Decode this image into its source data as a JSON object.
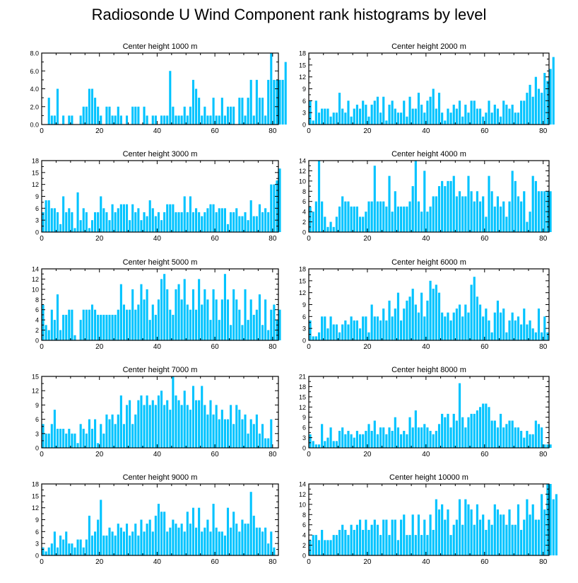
{
  "figure_title": "Radiosonde U Wind Component rank histograms by level",
  "colors": {
    "bar": "#00c3ff",
    "axis": "#000000"
  },
  "chart_data": [
    {
      "type": "bar",
      "title": "Center height 1000 m",
      "xlim": [
        0,
        82
      ],
      "ylim": [
        0,
        8
      ],
      "xticks": [
        0,
        20,
        40,
        60,
        80
      ],
      "yticks": [
        0,
        2,
        4,
        6,
        8
      ],
      "ytick_labels": [
        "0.0",
        "2.0",
        "4.0",
        "6.0",
        "8.0"
      ],
      "values": [
        0,
        0,
        3,
        1,
        1,
        4,
        0,
        1,
        0,
        1,
        1,
        0,
        0,
        1,
        2,
        2,
        4,
        4,
        3,
        2,
        1,
        0,
        2,
        2,
        1,
        1,
        2,
        1,
        0,
        1,
        0,
        2,
        2,
        2,
        0,
        2,
        1,
        0,
        1,
        1,
        0,
        1,
        1,
        1,
        6,
        2,
        1,
        1,
        1,
        2,
        1,
        2,
        5,
        4,
        3,
        1,
        2,
        1,
        1,
        3,
        1,
        1,
        3,
        1,
        2,
        2,
        2,
        0,
        3,
        3,
        1,
        3,
        5,
        1,
        5,
        3,
        3,
        1,
        5,
        8,
        5,
        5,
        5,
        5,
        7
      ]
    },
    {
      "type": "bar",
      "title": "Center height 2000 m",
      "xlim": [
        0,
        82
      ],
      "ylim": [
        0,
        18
      ],
      "xticks": [
        0,
        20,
        40,
        60,
        80
      ],
      "yticks": [
        0,
        3,
        6,
        9,
        12,
        15,
        18
      ],
      "ytick_labels": [
        "0",
        "3",
        "6",
        "9",
        "12",
        "15",
        "18"
      ],
      "values": [
        6,
        1,
        6,
        3,
        4,
        4,
        4,
        2,
        3,
        3,
        8,
        4,
        3,
        6,
        2,
        4,
        5,
        4,
        6,
        5,
        2,
        5,
        6,
        7,
        3,
        7,
        1,
        5,
        6,
        4,
        3,
        3,
        6,
        2,
        7,
        4,
        4,
        8,
        5,
        3,
        6,
        7,
        9,
        4,
        8,
        3,
        1,
        4,
        3,
        5,
        4,
        6,
        2,
        5,
        3,
        6,
        6,
        4,
        4,
        2,
        3,
        6,
        3,
        5,
        4,
        2,
        6,
        5,
        4,
        5,
        3,
        3,
        6,
        6,
        8,
        10,
        7,
        12,
        9,
        8,
        13,
        11,
        14,
        17
      ]
    },
    {
      "type": "bar",
      "title": "Center height 3000 m",
      "xlim": [
        0,
        82
      ],
      "ylim": [
        0,
        18
      ],
      "xticks": [
        0,
        20,
        40,
        60,
        80
      ],
      "yticks": [
        0,
        3,
        6,
        9,
        12,
        15,
        18
      ],
      "ytick_labels": [
        "0",
        "3",
        "6",
        "9",
        "12",
        "15",
        "18"
      ],
      "values": [
        5,
        8,
        8,
        6,
        6,
        5,
        2,
        9,
        5,
        6,
        5,
        1,
        10,
        3,
        6,
        5,
        1,
        3,
        5,
        5,
        9,
        6,
        5,
        3,
        7,
        5,
        6,
        7,
        7,
        7,
        3,
        7,
        5,
        6,
        3,
        5,
        4,
        8,
        6,
        4,
        5,
        3,
        5,
        7,
        7,
        7,
        5,
        5,
        5,
        9,
        5,
        9,
        5,
        6,
        5,
        4,
        5,
        6,
        7,
        7,
        5,
        6,
        6,
        6,
        2,
        5,
        5,
        6,
        4,
        4,
        5,
        3,
        8,
        4,
        4,
        7,
        5,
        6,
        5,
        12,
        12,
        13,
        16
      ]
    },
    {
      "type": "bar",
      "title": "Center height 4000 m",
      "xlim": [
        0,
        82
      ],
      "ylim": [
        0,
        14
      ],
      "xticks": [
        0,
        20,
        40,
        60,
        80
      ],
      "yticks": [
        0,
        2,
        4,
        6,
        8,
        10,
        12,
        14
      ],
      "ytick_labels": [
        "0",
        "2",
        "4",
        "6",
        "8",
        "10",
        "12",
        "14"
      ],
      "values": [
        5,
        4,
        6,
        14,
        6,
        3,
        1,
        2,
        1,
        3,
        5,
        7,
        6,
        6,
        5,
        5,
        5,
        3,
        3,
        4,
        6,
        6,
        13,
        6,
        6,
        6,
        5,
        11,
        4,
        8,
        5,
        5,
        5,
        5,
        6,
        9,
        14,
        6,
        4,
        12,
        4,
        5,
        7,
        7,
        9,
        10,
        9,
        10,
        10,
        11,
        7,
        8,
        7,
        7,
        11,
        8,
        6,
        8,
        6,
        7,
        3,
        11,
        8,
        5,
        7,
        5,
        6,
        3,
        6,
        12,
        10,
        7,
        6,
        8,
        2,
        4,
        11,
        10,
        8,
        8,
        8,
        8,
        8
      ]
    },
    {
      "type": "bar",
      "title": "Center height 5000 m",
      "xlim": [
        0,
        82
      ],
      "ylim": [
        0,
        14
      ],
      "xticks": [
        0,
        20,
        40,
        60,
        80
      ],
      "yticks": [
        0,
        2,
        4,
        6,
        8,
        10,
        12,
        14
      ],
      "ytick_labels": [
        "0",
        "2",
        "4",
        "6",
        "8",
        "10",
        "12",
        "14"
      ],
      "values": [
        7,
        3,
        2,
        6,
        4,
        9,
        2,
        5,
        5,
        6,
        6,
        1,
        0,
        4,
        6,
        6,
        6,
        7,
        6,
        5,
        5,
        5,
        5,
        5,
        5,
        5,
        6,
        11,
        7,
        6,
        6,
        10,
        6,
        7,
        11,
        8,
        10,
        4,
        7,
        5,
        8,
        12,
        13,
        10,
        6,
        5,
        10,
        11,
        8,
        12,
        7,
        6,
        10,
        6,
        12,
        7,
        10,
        8,
        4,
        10,
        8,
        4,
        8,
        13,
        8,
        3,
        10,
        8,
        6,
        3,
        10,
        4,
        8,
        5,
        6,
        9,
        3,
        8,
        2,
        6,
        7,
        4,
        6
      ]
    },
    {
      "type": "bar",
      "title": "Center height 6000 m",
      "xlim": [
        0,
        82
      ],
      "ylim": [
        0,
        18
      ],
      "xticks": [
        0,
        20,
        40,
        60,
        80
      ],
      "yticks": [
        0,
        3,
        6,
        9,
        12,
        15,
        18
      ],
      "ytick_labels": [
        "0",
        "3",
        "6",
        "9",
        "12",
        "15",
        "18"
      ],
      "values": [
        5,
        1,
        1,
        2,
        6,
        6,
        3,
        6,
        4,
        4,
        2,
        4,
        5,
        4,
        6,
        5,
        5,
        3,
        6,
        6,
        2,
        9,
        6,
        6,
        5,
        8,
        5,
        10,
        6,
        8,
        12,
        5,
        8,
        10,
        11,
        13,
        9,
        7,
        12,
        6,
        10,
        15,
        13,
        14,
        12,
        7,
        6,
        7,
        5,
        7,
        8,
        9,
        6,
        9,
        7,
        14,
        16,
        11,
        9,
        6,
        8,
        5,
        2,
        7,
        10,
        7,
        8,
        2,
        5,
        7,
        5,
        6,
        4,
        8,
        4,
        5,
        3,
        2,
        8,
        2,
        6,
        2
      ]
    },
    {
      "type": "bar",
      "title": "Center height 7000 m",
      "xlim": [
        0,
        82
      ],
      "ylim": [
        0,
        15
      ],
      "xticks": [
        0,
        20,
        40,
        60,
        80
      ],
      "yticks": [
        0,
        3,
        6,
        9,
        12,
        15
      ],
      "ytick_labels": [
        "0",
        "3",
        "6",
        "9",
        "12",
        "15"
      ],
      "values": [
        5,
        3,
        3,
        5,
        8,
        4,
        4,
        4,
        3,
        4,
        3,
        3,
        1,
        5,
        4,
        3,
        6,
        4,
        6,
        1,
        5,
        3,
        7,
        6,
        7,
        5,
        7,
        11,
        5,
        9,
        10,
        5,
        7,
        10,
        11,
        9,
        11,
        9,
        10,
        9,
        11,
        12,
        9,
        10,
        8,
        15,
        11,
        10,
        9,
        12,
        9,
        8,
        13,
        10,
        10,
        13,
        9,
        7,
        10,
        7,
        9,
        6,
        8,
        6,
        6,
        9,
        5,
        9,
        8,
        6,
        7,
        3,
        6,
        5,
        7,
        3,
        5,
        2,
        2,
        6
      ]
    },
    {
      "type": "bar",
      "title": "Center height 8000 m",
      "xlim": [
        0,
        82
      ],
      "ylim": [
        0,
        21
      ],
      "xticks": [
        0,
        20,
        40,
        60,
        80
      ],
      "yticks": [
        0,
        3,
        6,
        9,
        12,
        15,
        18,
        21
      ],
      "ytick_labels": [
        "0",
        "3",
        "6",
        "9",
        "12",
        "15",
        "18",
        "21"
      ],
      "values": [
        4,
        2,
        1,
        1,
        7,
        2,
        3,
        6,
        2,
        2,
        5,
        6,
        4,
        5,
        4,
        3,
        5,
        4,
        4,
        5,
        7,
        5,
        8,
        4,
        6,
        6,
        4,
        6,
        5,
        9,
        6,
        4,
        5,
        4,
        9,
        6,
        11,
        6,
        6,
        7,
        6,
        5,
        4,
        5,
        7,
        10,
        9,
        10,
        6,
        10,
        8,
        19,
        9,
        6,
        9,
        10,
        10,
        11,
        12,
        13,
        13,
        12,
        8,
        8,
        6,
        10,
        6,
        7,
        8,
        8,
        6,
        6,
        5,
        3,
        5,
        4,
        4,
        8,
        7,
        6,
        1,
        1,
        1
      ]
    },
    {
      "type": "bar",
      "title": "Center height 9000 m",
      "xlim": [
        0,
        82
      ],
      "ylim": [
        0,
        18
      ],
      "xticks": [
        0,
        20,
        40,
        60,
        80
      ],
      "yticks": [
        0,
        3,
        6,
        9,
        12,
        15,
        18
      ],
      "ytick_labels": [
        "0",
        "3",
        "6",
        "9",
        "12",
        "15",
        "18"
      ],
      "values": [
        2,
        1,
        2,
        3,
        6,
        2,
        5,
        4,
        6,
        3,
        3,
        2,
        4,
        4,
        2,
        4,
        10,
        5,
        6,
        9,
        14,
        5,
        5,
        7,
        6,
        5,
        8,
        7,
        6,
        8,
        5,
        6,
        8,
        5,
        9,
        6,
        8,
        9,
        6,
        10,
        13,
        11,
        11,
        6,
        7,
        9,
        8,
        7,
        8,
        6,
        11,
        8,
        12,
        7,
        12,
        6,
        7,
        9,
        6,
        13,
        7,
        6,
        6,
        5,
        12,
        7,
        11,
        8,
        6,
        9,
        8,
        8,
        16,
        10,
        7,
        7,
        6,
        7,
        3,
        6,
        2
      ]
    },
    {
      "type": "bar",
      "title": "Center height 10000 m",
      "xlim": [
        0,
        82
      ],
      "ylim": [
        0,
        14
      ],
      "xticks": [
        0,
        20,
        40,
        60,
        80
      ],
      "yticks": [
        0,
        2,
        4,
        6,
        8,
        10,
        12,
        14
      ],
      "ytick_labels": [
        "0",
        "2",
        "4",
        "6",
        "8",
        "10",
        "12",
        "14"
      ],
      "values": [
        3,
        4,
        4,
        3,
        5,
        3,
        3,
        3,
        4,
        4,
        5,
        6,
        5,
        4,
        6,
        5,
        6,
        7,
        5,
        7,
        5,
        6,
        7,
        6,
        4,
        7,
        7,
        4,
        7,
        7,
        3,
        7,
        8,
        4,
        4,
        8,
        4,
        8,
        4,
        7,
        4,
        8,
        5,
        11,
        9,
        10,
        7,
        9,
        4,
        6,
        7,
        11,
        6,
        11,
        10,
        9,
        6,
        10,
        7,
        8,
        5,
        7,
        6,
        10,
        9,
        8,
        8,
        6,
        9,
        6,
        6,
        10,
        5,
        7,
        11,
        8,
        10,
        7,
        7,
        12,
        9,
        14,
        14,
        11,
        12
      ]
    }
  ]
}
